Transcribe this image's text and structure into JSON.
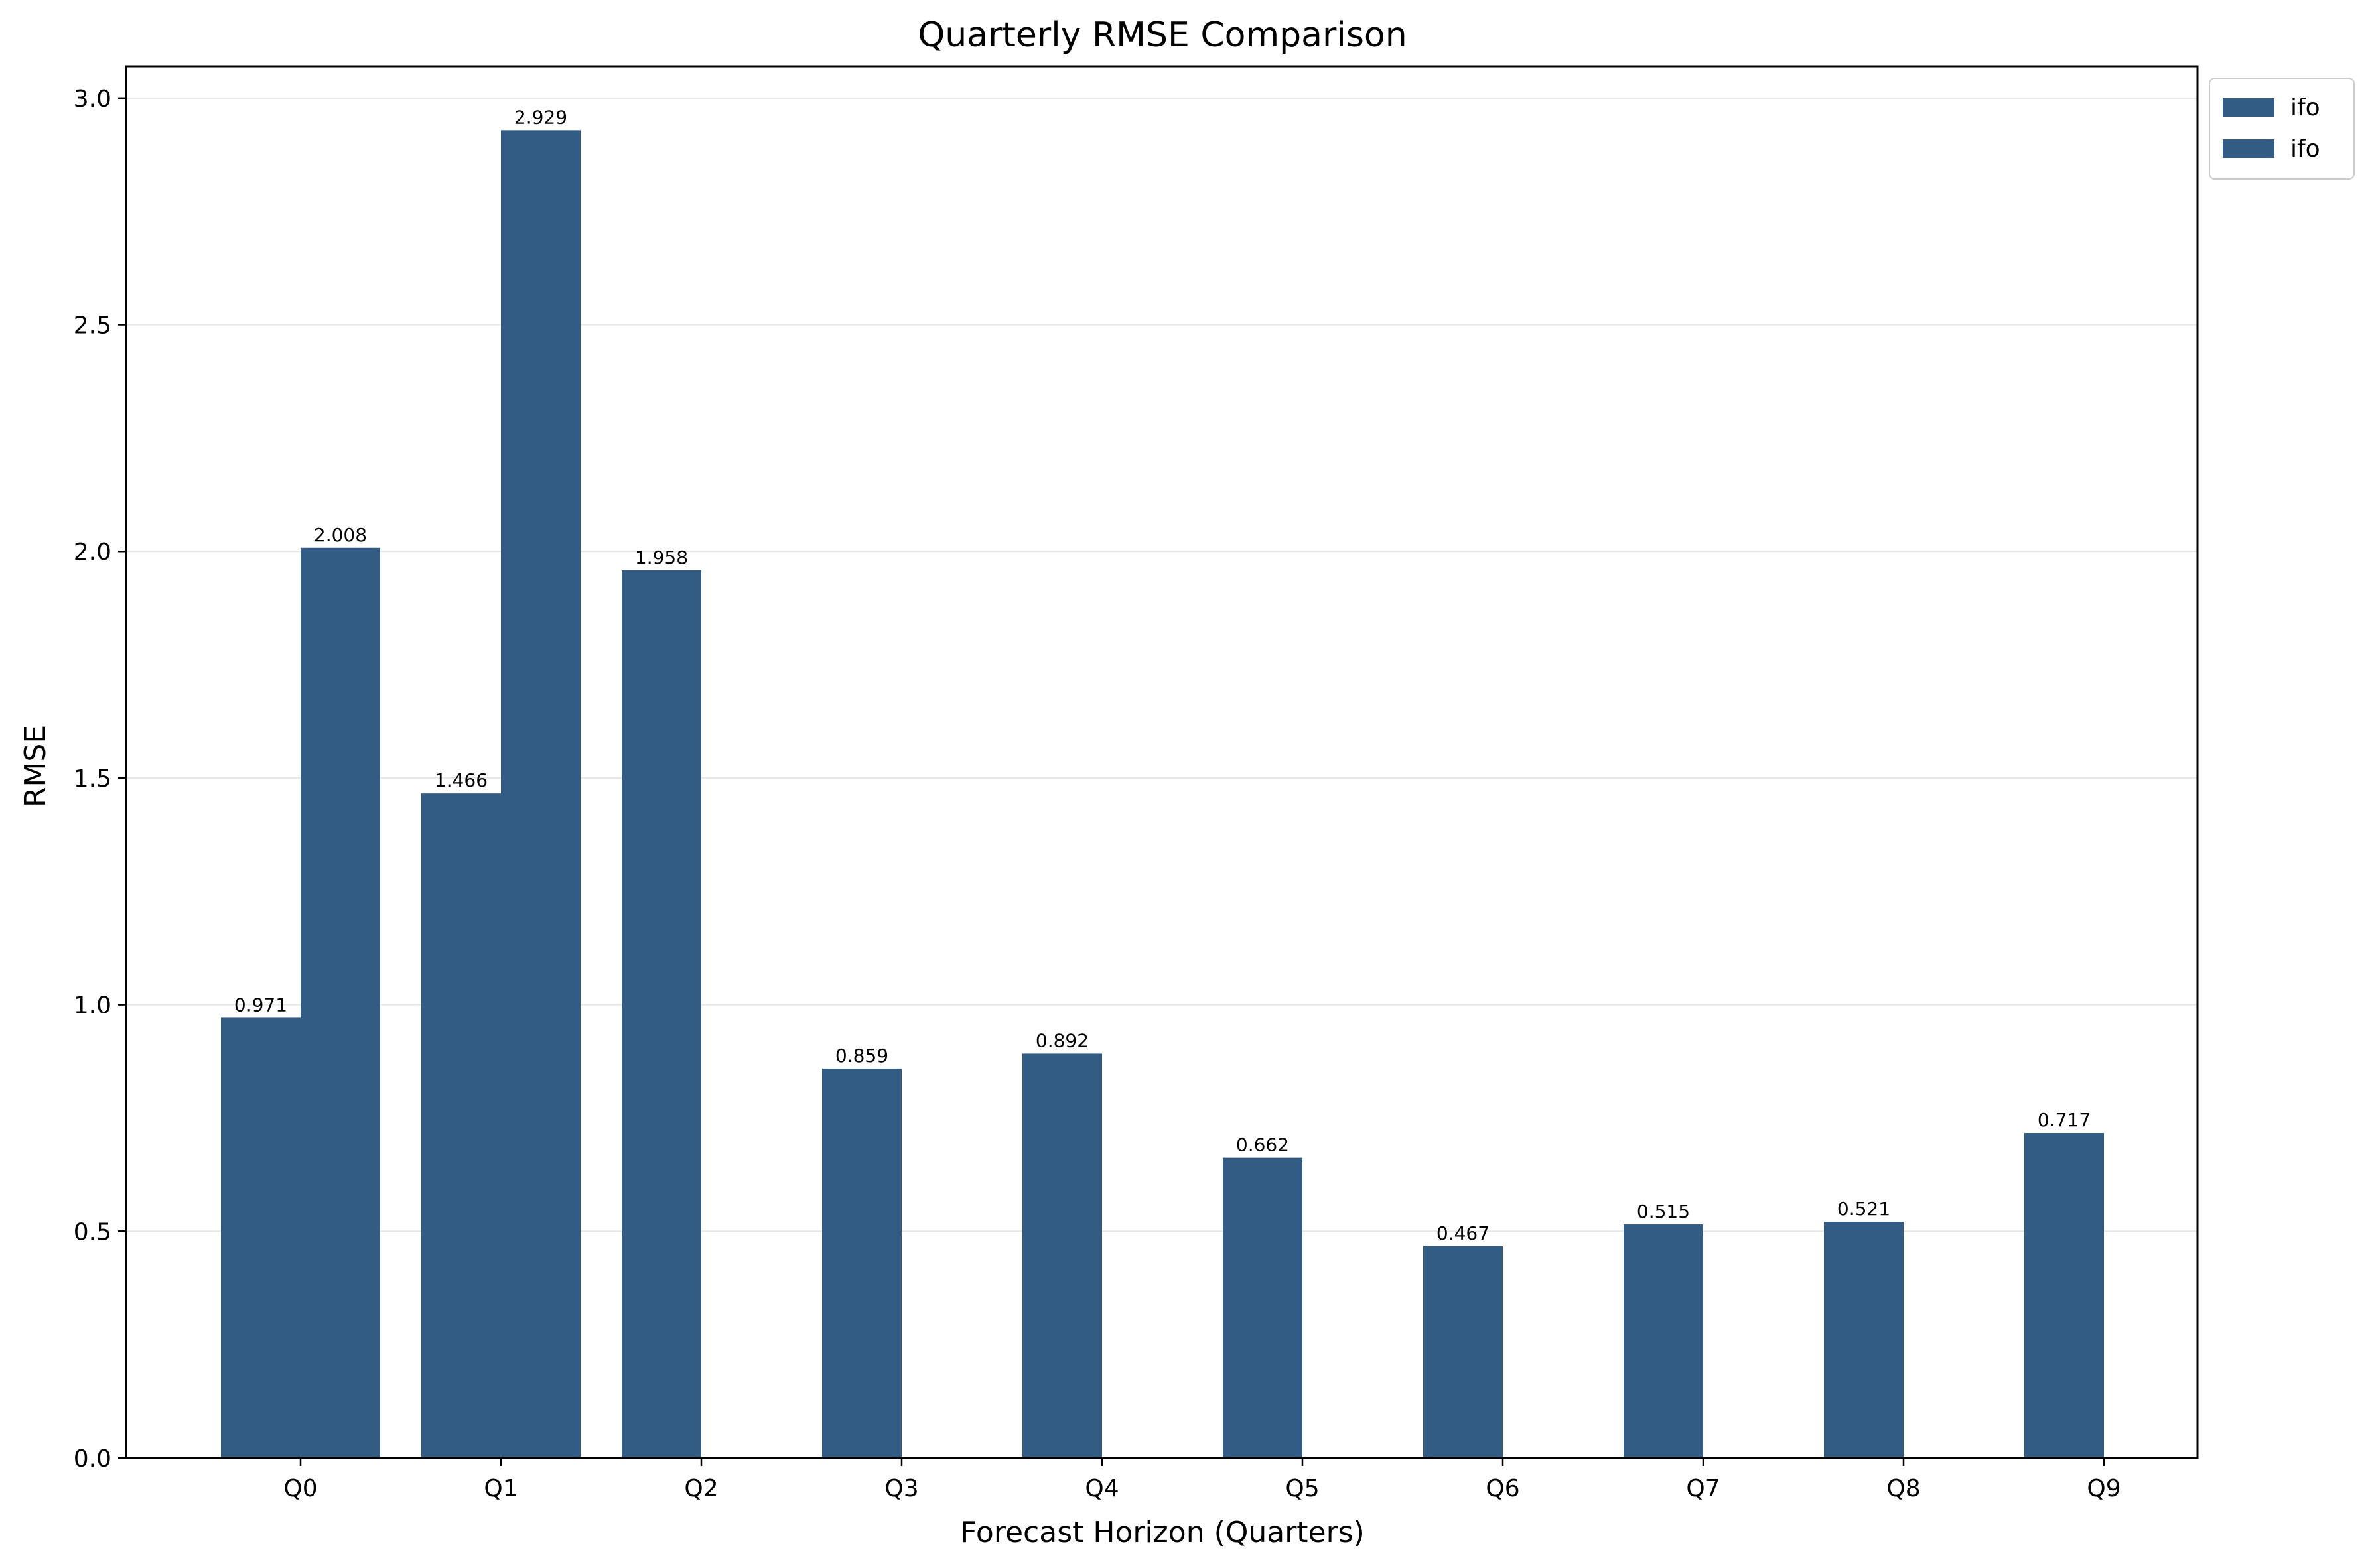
{
  "colors": {
    "bar": "#335c85",
    "grid": "#e6e6e6",
    "axis": "#000000",
    "background": "#ffffff"
  },
  "chart_data": {
    "type": "bar",
    "title": "Quarterly RMSE Comparison",
    "xlabel": "Forecast Horizon (Quarters)",
    "ylabel": "RMSE",
    "categories": [
      "Q0",
      "Q1",
      "Q2",
      "Q3",
      "Q4",
      "Q5",
      "Q6",
      "Q7",
      "Q8",
      "Q9"
    ],
    "ylim": [
      0,
      3.07
    ],
    "yticks": [
      "0.0",
      "0.5",
      "1.0",
      "1.5",
      "2.0",
      "2.5",
      "3.0"
    ],
    "grid": "horizontal",
    "legend_position": "top-right outside",
    "series": [
      {
        "name": "ifo",
        "values": [
          0.971,
          1.466,
          1.958,
          0.859,
          0.892,
          0.662,
          0.467,
          0.515,
          0.521,
          0.717
        ],
        "labels": [
          "0.971",
          "1.466",
          "1.958",
          "0.859",
          "0.892",
          "0.662",
          "0.467",
          "0.515",
          "0.521",
          "0.717"
        ]
      },
      {
        "name": "ifo",
        "values": [
          2.008,
          2.929,
          null,
          null,
          null,
          null,
          null,
          null,
          null,
          null
        ],
        "labels": [
          "2.008",
          "2.929",
          null,
          null,
          null,
          null,
          null,
          null,
          null,
          null
        ]
      }
    ]
  }
}
